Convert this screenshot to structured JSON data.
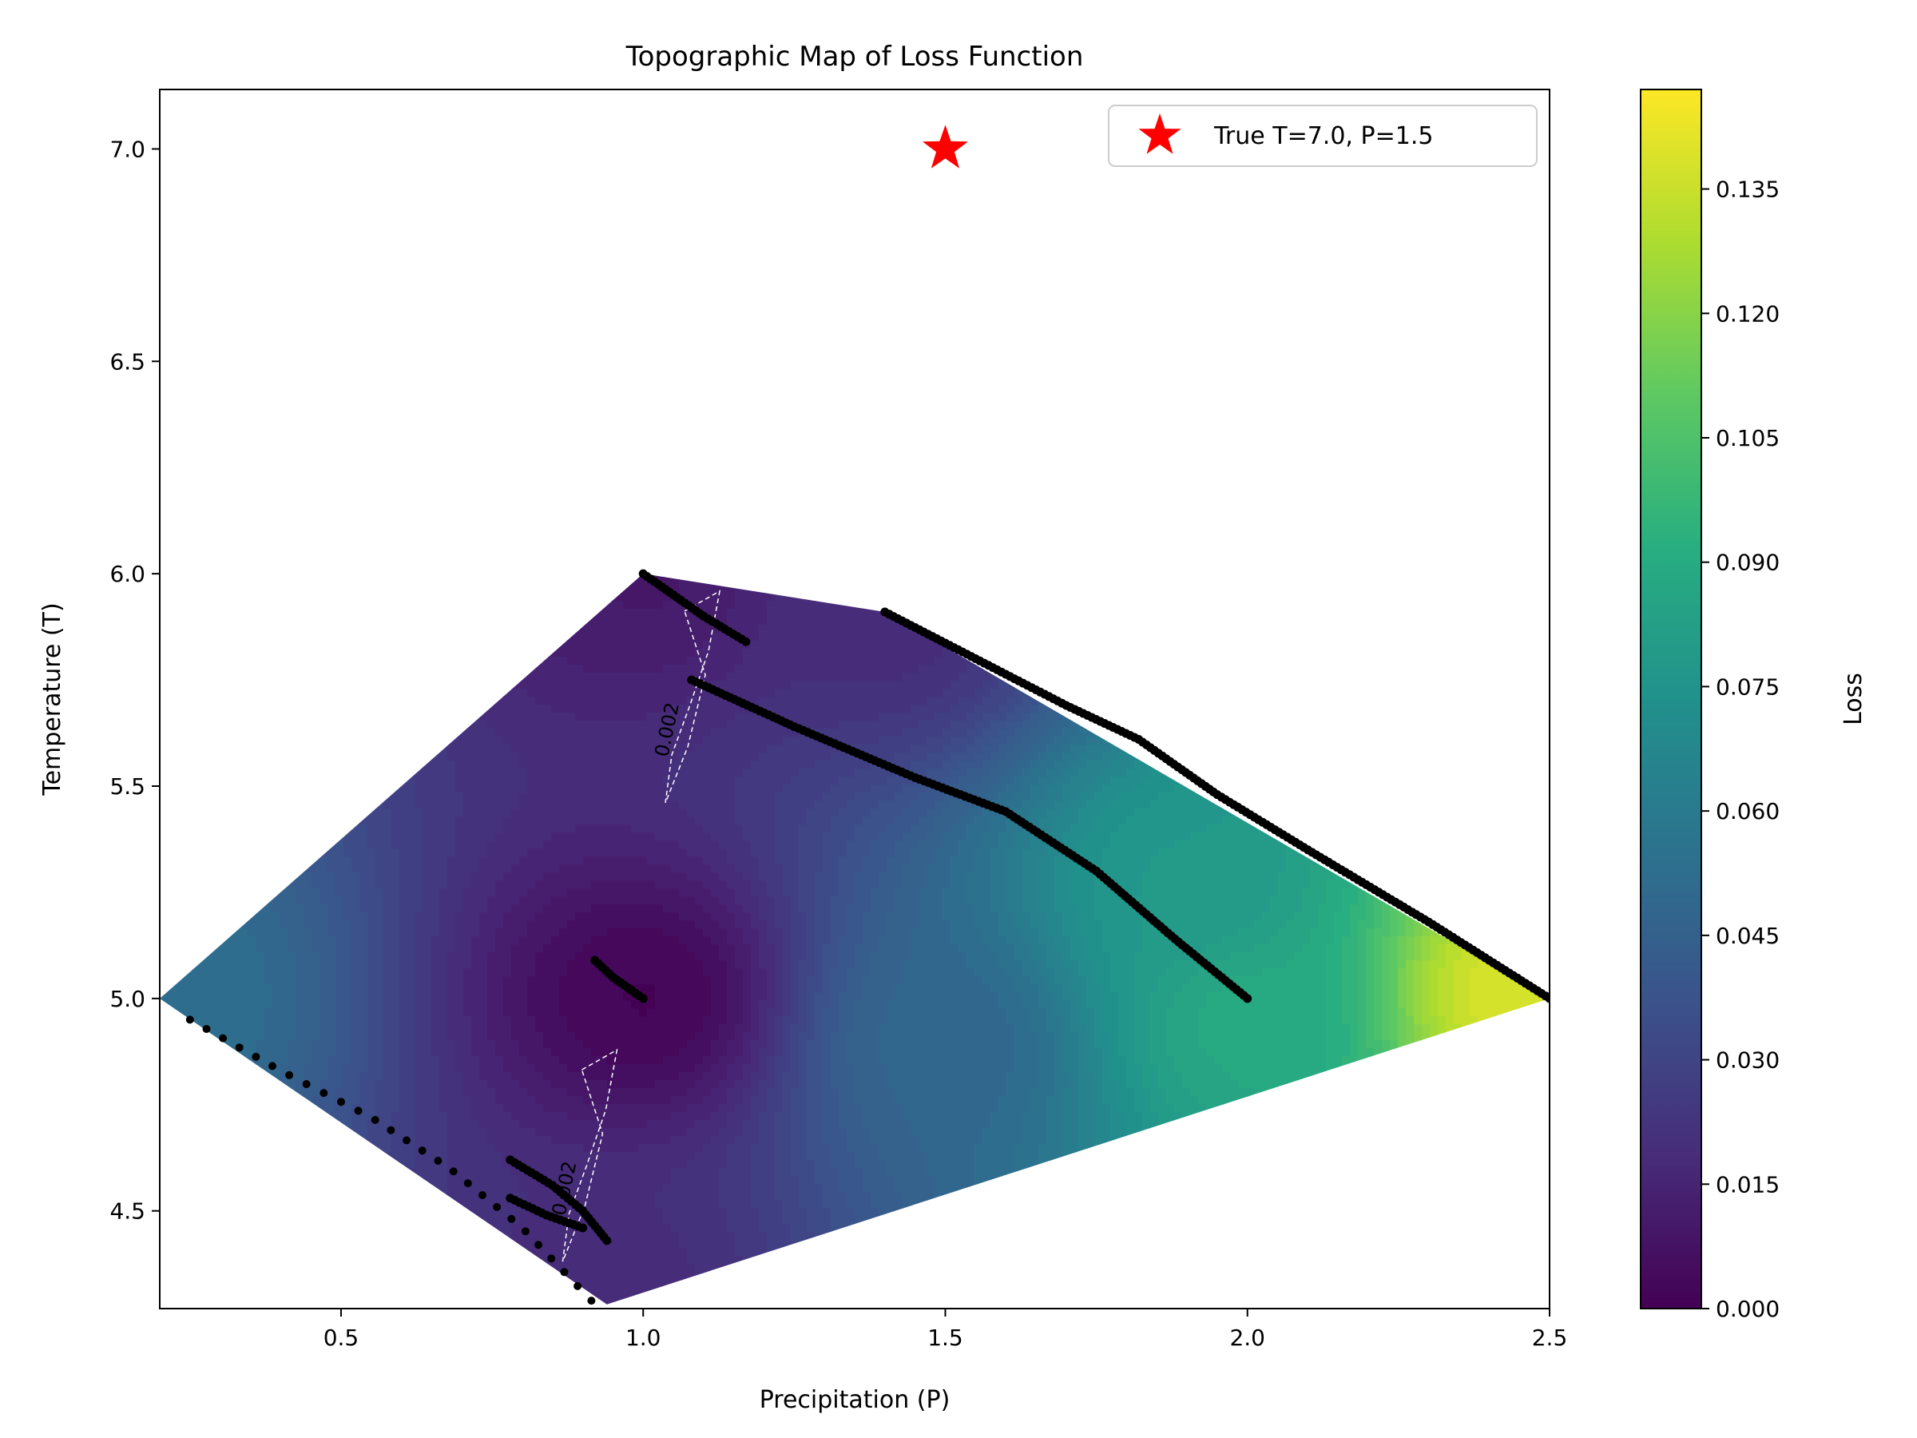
{
  "chart_data": {
    "type": "contour",
    "title": "Topographic Map of Loss Function",
    "xlabel": "Precipitation (P)",
    "ylabel": "Temperature (T)",
    "xlim": [
      0.2,
      2.5
    ],
    "ylim": [
      4.27,
      7.14
    ],
    "x_ticks": [
      {
        "value": 0.5,
        "label": "0.5"
      },
      {
        "value": 1.0,
        "label": "1.0"
      },
      {
        "value": 1.5,
        "label": "1.5"
      },
      {
        "value": 2.0,
        "label": "2.0"
      },
      {
        "value": 2.5,
        "label": "2.5"
      }
    ],
    "y_ticks": [
      {
        "value": 4.5,
        "label": "4.5"
      },
      {
        "value": 5.0,
        "label": "5.0"
      },
      {
        "value": 5.5,
        "label": "5.5"
      },
      {
        "value": 6.0,
        "label": "6.0"
      },
      {
        "value": 6.5,
        "label": "6.5"
      },
      {
        "value": 7.0,
        "label": "7.0"
      }
    ],
    "grid": false,
    "colormap": "viridis",
    "colorbar": {
      "label": "Loss",
      "range": [
        0.0,
        0.147
      ],
      "ticks": [
        {
          "value": 0.0,
          "label": "0.000"
        },
        {
          "value": 0.015,
          "label": "0.015"
        },
        {
          "value": 0.03,
          "label": "0.030"
        },
        {
          "value": 0.045,
          "label": "0.045"
        },
        {
          "value": 0.06,
          "label": "0.060"
        },
        {
          "value": 0.075,
          "label": "0.075"
        },
        {
          "value": 0.09,
          "label": "0.090"
        },
        {
          "value": 0.105,
          "label": "0.105"
        },
        {
          "value": 0.12,
          "label": "0.120"
        },
        {
          "value": 0.135,
          "label": "0.135"
        }
      ]
    },
    "region_vertices": [
      [
        0.2,
        5.0
      ],
      [
        1.0,
        6.0
      ],
      [
        1.4,
        5.91
      ],
      [
        2.5,
        5.0
      ],
      [
        0.94,
        4.28
      ]
    ],
    "loss_samples": [
      {
        "p": 0.2,
        "t": 5.0,
        "loss": 0.055
      },
      {
        "p": 1.0,
        "t": 6.0,
        "loss": 0.012
      },
      {
        "p": 1.4,
        "t": 5.9,
        "loss": 0.02
      },
      {
        "p": 1.9,
        "t": 5.25,
        "loss": 0.08
      },
      {
        "p": 2.45,
        "t": 5.02,
        "loss": 0.14
      },
      {
        "p": 1.0,
        "t": 5.0,
        "loss": 0.003
      },
      {
        "p": 1.5,
        "t": 4.9,
        "loss": 0.05
      },
      {
        "p": 2.0,
        "t": 4.95,
        "loss": 0.09
      },
      {
        "p": 0.94,
        "t": 4.3,
        "loss": 0.02
      }
    ],
    "contour_lines": [
      {
        "level": 0.002,
        "label": "0.002",
        "label_position": [
          1.05,
          5.63
        ]
      },
      {
        "level": 0.002,
        "label": "0.002",
        "label_position": [
          0.88,
          4.55
        ]
      }
    ],
    "trajectories": [
      [
        [
          1.0,
          6.0
        ],
        [
          1.05,
          5.95
        ],
        [
          1.1,
          5.9
        ],
        [
          1.17,
          5.84
        ]
      ],
      [
        [
          1.08,
          5.75
        ],
        [
          1.25,
          5.64
        ],
        [
          1.45,
          5.52
        ],
        [
          1.6,
          5.44
        ],
        [
          1.75,
          5.3
        ],
        [
          1.88,
          5.14
        ],
        [
          2.0,
          5.0
        ]
      ],
      [
        [
          1.4,
          5.91
        ],
        [
          1.55,
          5.8
        ],
        [
          1.7,
          5.69
        ],
        [
          1.82,
          5.61
        ],
        [
          1.95,
          5.48
        ],
        [
          2.1,
          5.35
        ],
        [
          2.3,
          5.18
        ],
        [
          2.5,
          5.0
        ]
      ],
      [
        [
          0.92,
          5.09
        ],
        [
          0.95,
          5.05
        ],
        [
          0.98,
          5.02
        ],
        [
          1.0,
          5.0
        ]
      ],
      [
        [
          0.78,
          4.62
        ],
        [
          0.85,
          4.56
        ],
        [
          0.9,
          4.5
        ],
        [
          0.94,
          4.43
        ]
      ],
      [
        [
          0.78,
          4.53
        ],
        [
          0.84,
          4.49
        ],
        [
          0.9,
          4.46
        ]
      ],
      [
        [
          0.25,
          4.95
        ],
        [
          0.4,
          4.83
        ],
        [
          0.55,
          4.72
        ],
        [
          0.68,
          4.6
        ],
        [
          0.8,
          4.46
        ],
        [
          0.88,
          4.34
        ],
        [
          0.92,
          4.28
        ]
      ]
    ],
    "marker": {
      "p": 1.5,
      "t": 7.0,
      "color": "#ff0000",
      "symbol": "star"
    },
    "legend": {
      "placement": "top-right",
      "entries": [
        "True T=7.0, P=1.5"
      ]
    }
  }
}
